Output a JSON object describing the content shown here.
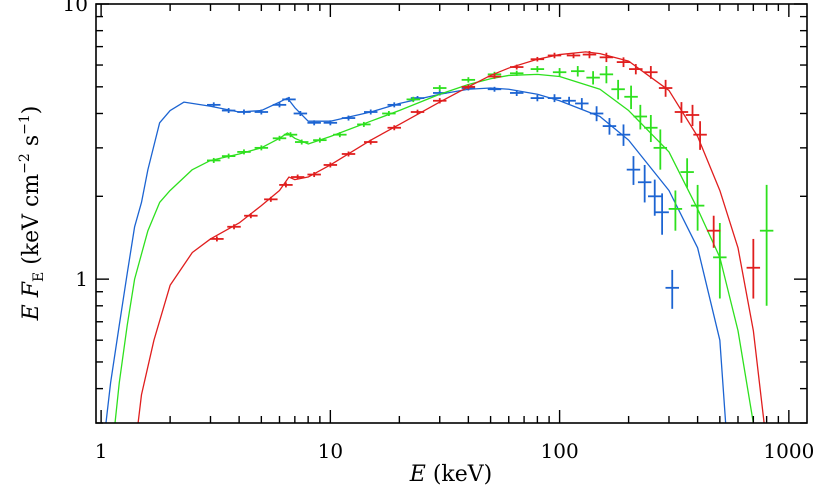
{
  "chart_data": {
    "type": "line",
    "xlabel": {
      "italic": "E",
      "rest": " (keV)"
    },
    "ylabel": {
      "e": "E",
      "f": "F",
      "sub": "E",
      "open": " (keV cm",
      "exp1": "−2",
      "mid": " s",
      "exp2": "−1",
      "close": ")"
    },
    "xscale": "log",
    "yscale": "log",
    "xlim": [
      0.95,
      1200
    ],
    "ylim": [
      0.3,
      10
    ],
    "x_ticks": [
      1,
      10,
      100,
      1000
    ],
    "x_tick_labels": [
      "1",
      "10",
      "100",
      "1000"
    ],
    "y_ticks": [
      1,
      10
    ],
    "y_tick_labels": [
      "1",
      "10"
    ],
    "grid": false,
    "legend": "none",
    "series": [
      {
        "color": "#1c64d2",
        "model": [
          [
            1.05,
            0.3
          ],
          [
            1.1,
            0.42
          ],
          [
            1.2,
            0.68
          ],
          [
            1.3,
            1.05
          ],
          [
            1.4,
            1.55
          ],
          [
            1.5,
            1.9
          ],
          [
            1.6,
            2.5
          ],
          [
            1.8,
            3.7
          ],
          [
            2.0,
            4.1
          ],
          [
            2.3,
            4.4
          ],
          [
            3.0,
            4.25
          ],
          [
            4.0,
            4.05
          ],
          [
            5.0,
            4.1
          ],
          [
            6.0,
            4.4
          ],
          [
            6.5,
            4.55
          ],
          [
            7.0,
            4.2
          ],
          [
            8.0,
            3.75
          ],
          [
            10,
            3.75
          ],
          [
            15,
            4.05
          ],
          [
            20,
            4.35
          ],
          [
            30,
            4.7
          ],
          [
            40,
            4.9
          ],
          [
            50,
            4.95
          ],
          [
            60,
            4.9
          ],
          [
            80,
            4.7
          ],
          [
            100,
            4.45
          ],
          [
            150,
            3.9
          ],
          [
            200,
            3.2
          ],
          [
            300,
            2.1
          ],
          [
            400,
            1.3
          ],
          [
            500,
            0.6
          ],
          [
            530,
            0.3
          ]
        ],
        "points": [
          [
            3.1,
            4.3,
            0,
            0
          ],
          [
            3.6,
            4.1,
            0,
            0
          ],
          [
            4.2,
            4.05,
            0,
            0
          ],
          [
            5.0,
            4.05,
            0,
            0
          ],
          [
            6.0,
            4.3,
            0,
            0
          ],
          [
            6.6,
            4.5,
            0,
            0
          ],
          [
            7.4,
            4.0,
            0,
            0
          ],
          [
            8.5,
            3.7,
            0,
            0
          ],
          [
            10,
            3.7,
            0,
            0
          ],
          [
            12,
            3.85,
            0,
            0
          ],
          [
            15,
            4.05,
            0,
            0
          ],
          [
            19,
            4.3,
            0,
            0
          ],
          [
            24,
            4.55,
            0.08,
            0.08
          ],
          [
            30,
            4.75,
            0.1,
            0.1
          ],
          [
            40,
            4.95,
            0.1,
            0.1
          ],
          [
            52,
            4.9,
            0.1,
            0.1
          ],
          [
            65,
            4.75,
            0.12,
            0.12
          ],
          [
            80,
            4.55,
            0.12,
            0.12
          ],
          [
            95,
            4.55,
            0.15,
            0.15
          ],
          [
            110,
            4.45,
            0.15,
            0.15
          ],
          [
            125,
            4.35,
            0.2,
            0.2
          ],
          [
            145,
            4.0,
            0.25,
            0.25
          ],
          [
            165,
            3.6,
            0.25,
            0.25
          ],
          [
            190,
            3.35,
            0.3,
            0.3
          ],
          [
            210,
            2.5,
            0.3,
            0.3
          ],
          [
            235,
            2.25,
            0.35,
            0.35
          ],
          [
            260,
            2.0,
            0.3,
            0.3
          ],
          [
            280,
            1.75,
            0.3,
            0.3
          ],
          [
            310,
            0.93,
            0.15,
            0.15
          ]
        ]
      },
      {
        "color": "#2ee01e",
        "model": [
          [
            1.15,
            0.3
          ],
          [
            1.2,
            0.42
          ],
          [
            1.3,
            0.68
          ],
          [
            1.4,
            1.0
          ],
          [
            1.6,
            1.5
          ],
          [
            1.8,
            1.9
          ],
          [
            2.0,
            2.1
          ],
          [
            2.5,
            2.5
          ],
          [
            3.0,
            2.7
          ],
          [
            4.0,
            2.85
          ],
          [
            5.0,
            3.0
          ],
          [
            6.0,
            3.25
          ],
          [
            6.5,
            3.4
          ],
          [
            7.0,
            3.25
          ],
          [
            8.0,
            3.1
          ],
          [
            10,
            3.3
          ],
          [
            15,
            3.75
          ],
          [
            20,
            4.1
          ],
          [
            30,
            4.7
          ],
          [
            40,
            5.1
          ],
          [
            50,
            5.35
          ],
          [
            60,
            5.5
          ],
          [
            80,
            5.55
          ],
          [
            100,
            5.45
          ],
          [
            150,
            4.9
          ],
          [
            200,
            4.1
          ],
          [
            300,
            2.9
          ],
          [
            400,
            1.8
          ],
          [
            500,
            1.2
          ],
          [
            600,
            0.65
          ],
          [
            700,
            0.3
          ]
        ],
        "points": [
          [
            3.1,
            2.7,
            0,
            0
          ],
          [
            3.6,
            2.8,
            0,
            0
          ],
          [
            4.2,
            2.9,
            0,
            0
          ],
          [
            5.0,
            3.0,
            0,
            0
          ],
          [
            6.0,
            3.25,
            0,
            0
          ],
          [
            6.7,
            3.35,
            0,
            0
          ],
          [
            7.5,
            3.15,
            0,
            0
          ],
          [
            9,
            3.2,
            0,
            0
          ],
          [
            11,
            3.35,
            0,
            0
          ],
          [
            14,
            3.65,
            0,
            0
          ],
          [
            18,
            4.0,
            0,
            0
          ],
          [
            23,
            4.5,
            0.1,
            0.1
          ],
          [
            30,
            4.95,
            0.12,
            0.12
          ],
          [
            40,
            5.3,
            0.12,
            0.12
          ],
          [
            52,
            5.55,
            0.12,
            0.12
          ],
          [
            65,
            5.6,
            0.12,
            0.12
          ],
          [
            80,
            5.8,
            0.15,
            0.15
          ],
          [
            100,
            5.65,
            0.2,
            0.2
          ],
          [
            120,
            5.7,
            0.25,
            0.25
          ],
          [
            140,
            5.4,
            0.3,
            0.3
          ],
          [
            160,
            5.55,
            0.4,
            0.4
          ],
          [
            180,
            4.9,
            0.4,
            0.4
          ],
          [
            205,
            4.6,
            0.45,
            0.45
          ],
          [
            225,
            3.9,
            0.4,
            0.4
          ],
          [
            250,
            3.55,
            0.4,
            0.4
          ],
          [
            275,
            3.0,
            0.5,
            0.5
          ],
          [
            320,
            1.8,
            0.3,
            0.3
          ],
          [
            360,
            2.45,
            0.3,
            0.3
          ],
          [
            400,
            1.85,
            0.35,
            0.35
          ],
          [
            500,
            1.2,
            0.4,
            0.35
          ],
          [
            800,
            1.5,
            0.7,
            0.7
          ]
        ]
      },
      {
        "color": "#e01e1e",
        "model": [
          [
            1.45,
            0.3
          ],
          [
            1.5,
            0.38
          ],
          [
            1.7,
            0.6
          ],
          [
            2.0,
            0.95
          ],
          [
            2.5,
            1.25
          ],
          [
            3.0,
            1.4
          ],
          [
            4.0,
            1.6
          ],
          [
            5.0,
            1.85
          ],
          [
            6.0,
            2.1
          ],
          [
            6.6,
            2.35
          ],
          [
            7.0,
            2.3
          ],
          [
            8.0,
            2.35
          ],
          [
            10,
            2.6
          ],
          [
            15,
            3.2
          ],
          [
            20,
            3.65
          ],
          [
            30,
            4.4
          ],
          [
            40,
            5.0
          ],
          [
            50,
            5.5
          ],
          [
            60,
            5.85
          ],
          [
            80,
            6.3
          ],
          [
            100,
            6.55
          ],
          [
            130,
            6.7
          ],
          [
            150,
            6.6
          ],
          [
            200,
            6.2
          ],
          [
            300,
            4.85
          ],
          [
            400,
            3.3
          ],
          [
            500,
            2.1
          ],
          [
            600,
            1.3
          ],
          [
            700,
            0.65
          ],
          [
            780,
            0.3
          ]
        ],
        "points": [
          [
            3.2,
            1.4,
            0,
            0
          ],
          [
            3.8,
            1.55,
            0,
            0
          ],
          [
            4.5,
            1.7,
            0,
            0
          ],
          [
            5.5,
            1.95,
            0,
            0
          ],
          [
            6.4,
            2.2,
            0,
            0
          ],
          [
            7.2,
            2.35,
            0,
            0
          ],
          [
            8.5,
            2.4,
            0,
            0
          ],
          [
            10,
            2.6,
            0,
            0
          ],
          [
            12,
            2.85,
            0,
            0
          ],
          [
            15,
            3.15,
            0,
            0
          ],
          [
            19,
            3.55,
            0,
            0
          ],
          [
            24,
            4.05,
            0.08,
            0.08
          ],
          [
            30,
            4.45,
            0.1,
            0.1
          ],
          [
            40,
            5.0,
            0.1,
            0.1
          ],
          [
            52,
            5.45,
            0.1,
            0.1
          ],
          [
            65,
            5.9,
            0.12,
            0.12
          ],
          [
            80,
            6.3,
            0.12,
            0.12
          ],
          [
            95,
            6.5,
            0.15,
            0.15
          ],
          [
            115,
            6.5,
            0.15,
            0.15
          ],
          [
            135,
            6.55,
            0.2,
            0.2
          ],
          [
            160,
            6.4,
            0.25,
            0.25
          ],
          [
            190,
            6.15,
            0.25,
            0.25
          ],
          [
            215,
            5.8,
            0.25,
            0.25
          ],
          [
            250,
            5.65,
            0.3,
            0.3
          ],
          [
            290,
            4.95,
            0.35,
            0.35
          ],
          [
            340,
            4.05,
            0.35,
            0.35
          ],
          [
            380,
            3.95,
            0.35,
            0.35
          ],
          [
            410,
            3.35,
            0.4,
            0.4
          ],
          [
            470,
            1.5,
            0.2,
            0.2
          ],
          [
            700,
            1.1,
            0.3,
            0.25
          ]
        ]
      }
    ]
  }
}
